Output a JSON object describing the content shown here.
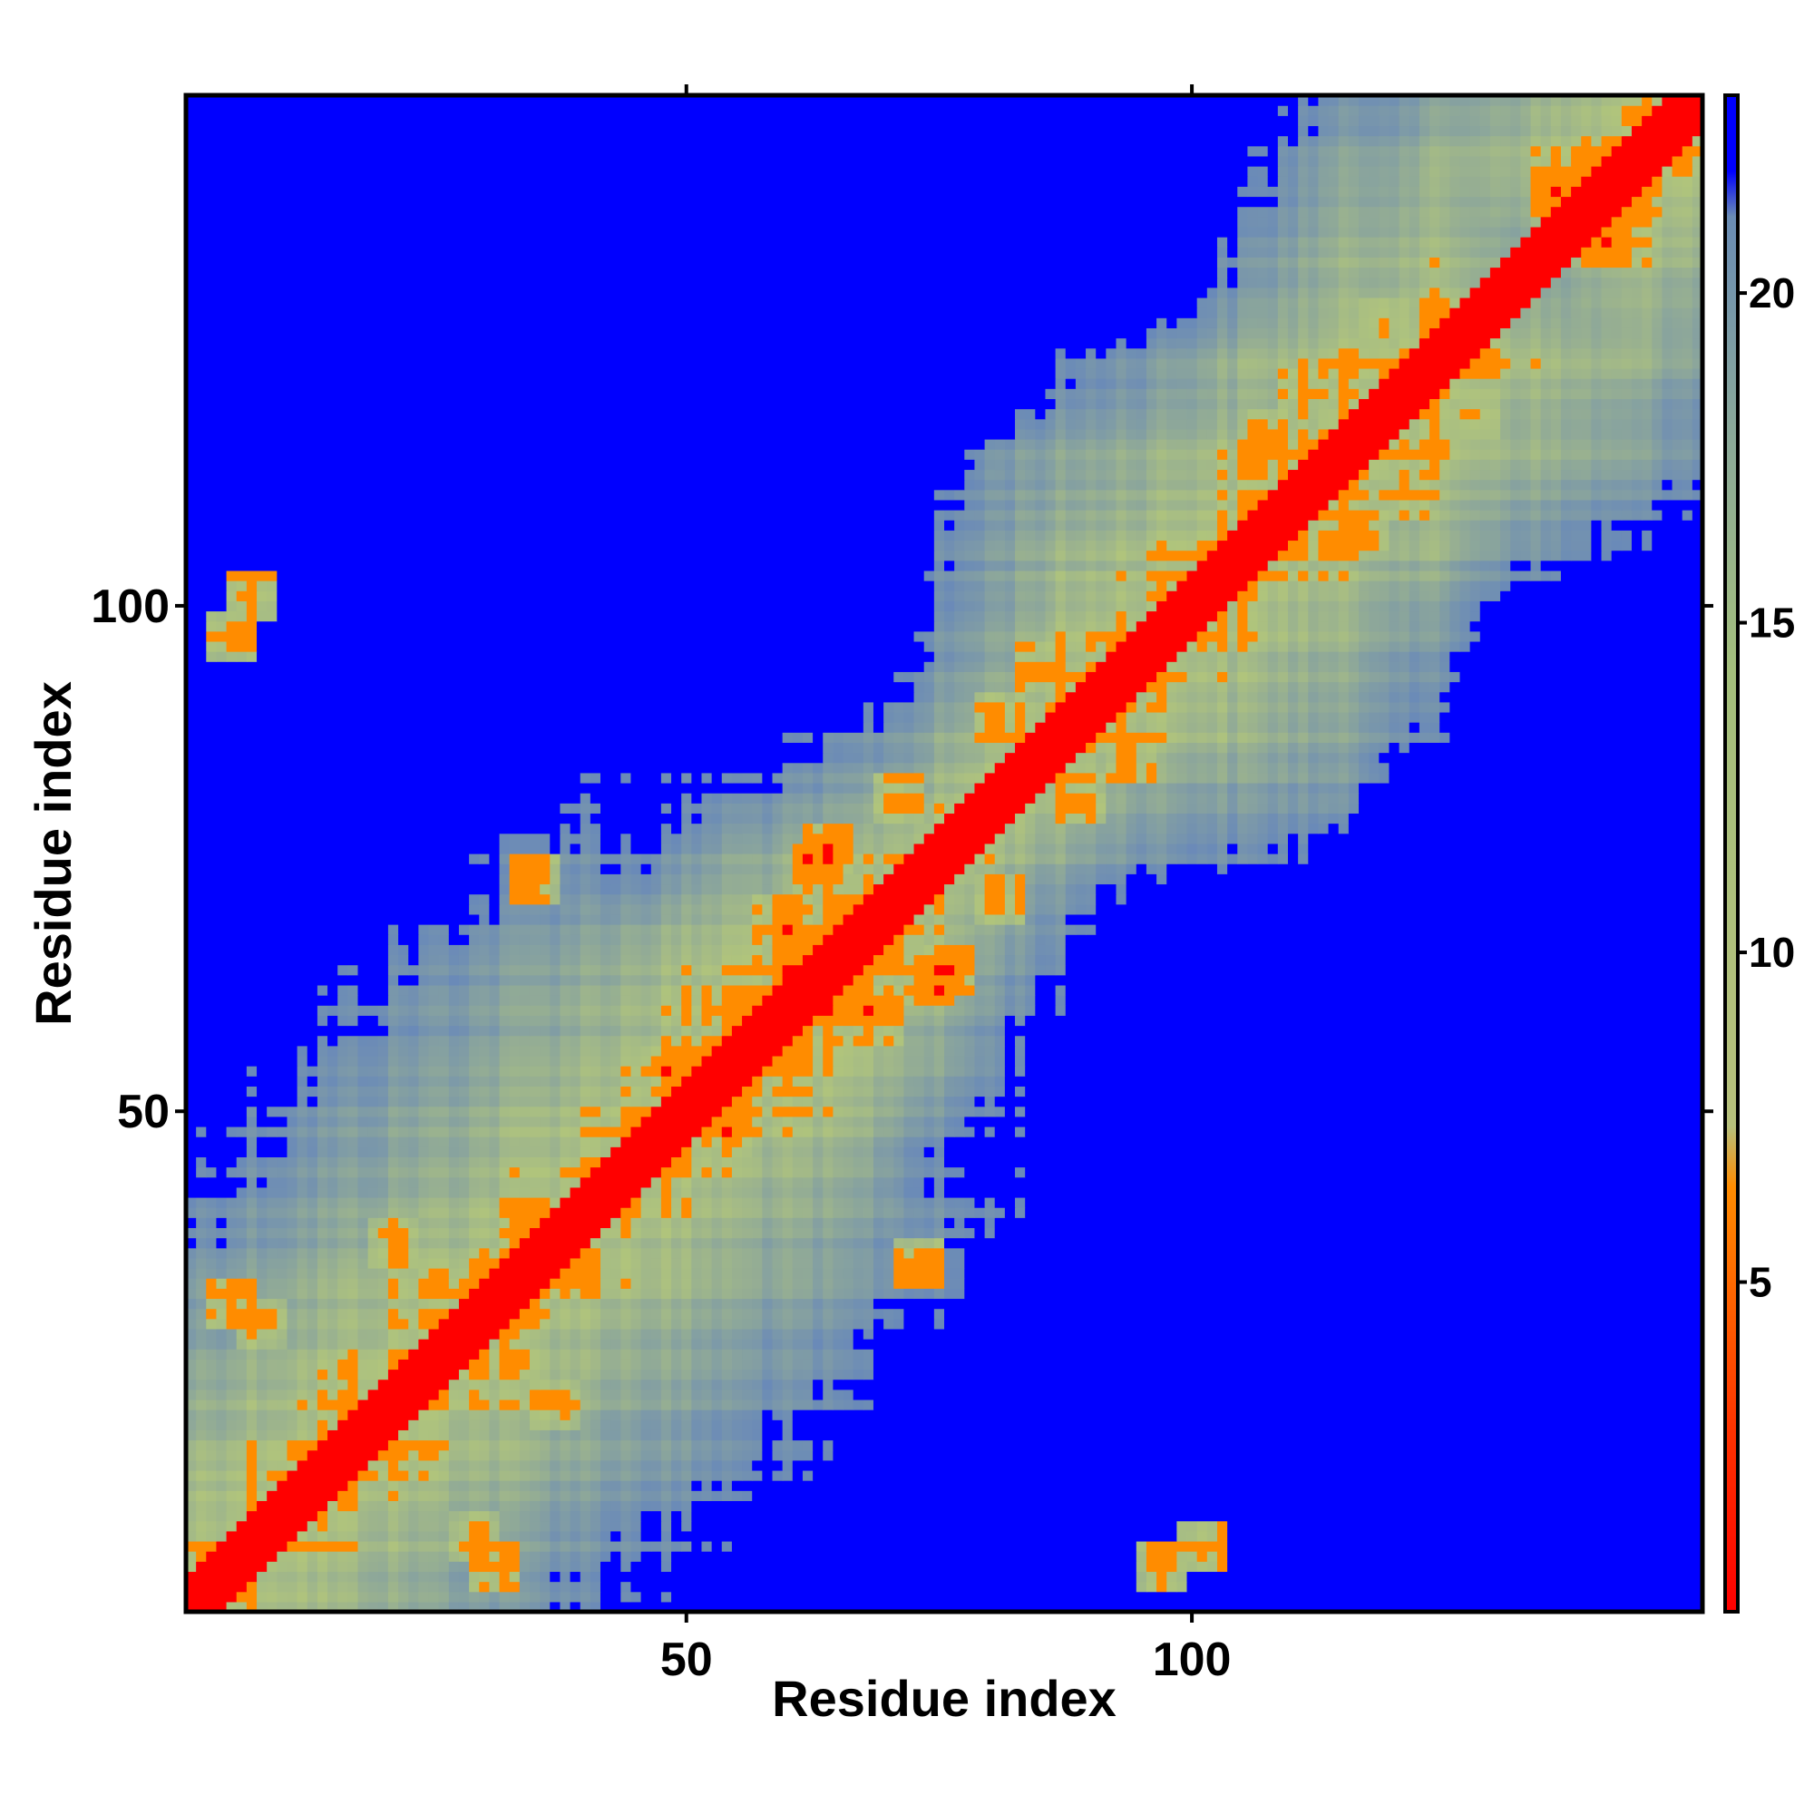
{
  "chart_data": {
    "type": "heatmap",
    "title": "",
    "xlabel": "Residue index",
    "ylabel": "Residue index",
    "n_residues": 150,
    "xlim": [
      1,
      150
    ],
    "ylim": [
      1,
      150
    ],
    "x_ticks": [
      {
        "value": 50,
        "label": "50"
      },
      {
        "value": 100,
        "label": "100"
      }
    ],
    "y_ticks": [
      {
        "value": 50,
        "label": "50"
      },
      {
        "value": 100,
        "label": "100"
      }
    ],
    "colorbar": {
      "range": [
        0,
        23
      ],
      "ticks": [
        {
          "value": 5,
          "label": "5"
        },
        {
          "value": 10,
          "label": "10"
        },
        {
          "value": 15,
          "label": "15"
        },
        {
          "value": 20,
          "label": "20"
        }
      ],
      "palette": [
        "#ff0000",
        "#ff8c00",
        "#a4bf7c",
        "#6f8fb0",
        "#0000ff"
      ]
    },
    "value_classes": [
      {
        "max": 3.8,
        "color": "#ff0000"
      },
      {
        "max": 8,
        "color": "#ff8c00"
      },
      {
        "max": 22,
        "color": "#a4bf7c"
      },
      {
        "max": 23,
        "color": "#0000ff"
      }
    ],
    "grid": false,
    "legend": "colorbar-right"
  }
}
